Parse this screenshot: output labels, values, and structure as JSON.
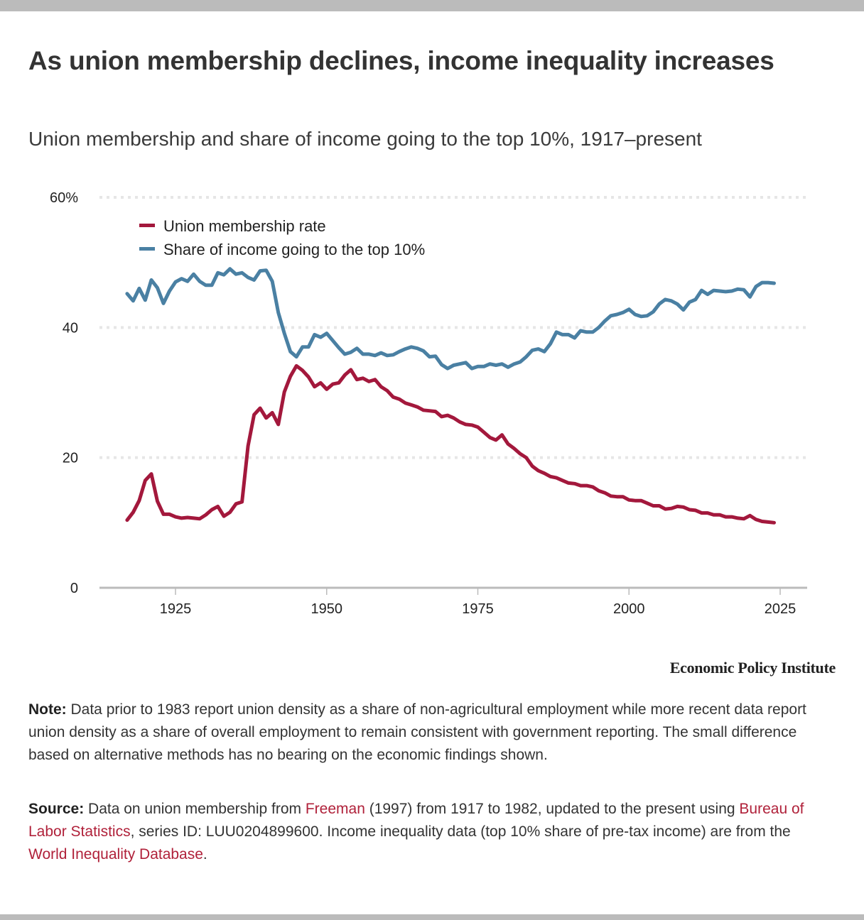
{
  "header": {
    "title": "As union membership declines, income inequality increases",
    "subtitle": "Union membership and share of income going to the top 10%, 1917–present"
  },
  "colors": {
    "union": "#a3183c",
    "income": "#4a80a3",
    "grid": "#e6e6e6",
    "axis": "#bbbbbb",
    "link": "#b0213a"
  },
  "chart_data": {
    "type": "line",
    "title": "As union membership declines, income inequality increases",
    "subtitle": "Union membership and share of income going to the top 10%, 1917–present",
    "xlabel": "",
    "ylabel": "",
    "xlim": [
      1913,
      2029
    ],
    "ylim": [
      0,
      60
    ],
    "x_ticks": [
      1925,
      1950,
      1975,
      2000,
      2025
    ],
    "x_tick_labels": [
      "1925",
      "1950",
      "1975",
      "2000",
      "2025"
    ],
    "y_ticks": [
      0,
      20,
      40,
      60
    ],
    "y_tick_labels": [
      "0",
      "20",
      "40",
      "60%"
    ],
    "grid": "horizontal dotted",
    "legend_position": "top-left",
    "x_start": 1917,
    "series": [
      {
        "name": "Union membership rate",
        "key": "union",
        "values": [
          10.4,
          11.6,
          13.4,
          16.5,
          17.5,
          13.3,
          11.3,
          11.3,
          10.9,
          10.7,
          10.8,
          10.7,
          10.6,
          11.2,
          12.0,
          12.5,
          11.0,
          11.6,
          12.9,
          13.2,
          21.8,
          26.6,
          27.6,
          26.1,
          26.9,
          25.1,
          30.1,
          32.5,
          34.1,
          33.4,
          32.4,
          30.9,
          31.5,
          30.5,
          31.3,
          31.5,
          32.7,
          33.5,
          32.0,
          32.2,
          31.7,
          32.0,
          30.9,
          30.3,
          29.3,
          29.0,
          28.4,
          28.1,
          27.8,
          27.3,
          27.2,
          27.1,
          26.3,
          26.5,
          26.1,
          25.5,
          25.1,
          25.0,
          24.7,
          23.9,
          23.1,
          22.7,
          23.5,
          22.1,
          21.4,
          20.6,
          20.0,
          18.7,
          18.0,
          17.6,
          17.1,
          16.9,
          16.5,
          16.1,
          16.0,
          15.7,
          15.7,
          15.5,
          14.9,
          14.6,
          14.1,
          14.0,
          14.0,
          13.5,
          13.4,
          13.4,
          13.0,
          12.6,
          12.6,
          12.1,
          12.2,
          12.5,
          12.4,
          12.0,
          11.9,
          11.5,
          11.5,
          11.2,
          11.2,
          10.9,
          10.9,
          10.7,
          10.6,
          11.1,
          10.5,
          10.2,
          10.1,
          10.0
        ]
      },
      {
        "name": "Share of income going to the top 10%",
        "key": "income",
        "values": [
          45.2,
          44.1,
          46.0,
          44.2,
          47.3,
          46.1,
          43.7,
          45.6,
          47.0,
          47.5,
          47.1,
          48.2,
          47.1,
          46.5,
          46.5,
          48.4,
          48.1,
          49.0,
          48.2,
          48.4,
          47.7,
          47.3,
          48.7,
          48.8,
          47.1,
          42.3,
          39.1,
          36.3,
          35.5,
          37.0,
          37.0,
          38.9,
          38.5,
          39.1,
          38.0,
          36.9,
          35.9,
          36.2,
          36.8,
          35.9,
          35.9,
          35.7,
          36.1,
          35.7,
          35.8,
          36.3,
          36.7,
          37.0,
          36.8,
          36.4,
          35.5,
          35.6,
          34.3,
          33.7,
          34.2,
          34.4,
          34.6,
          33.7,
          34.0,
          34.0,
          34.4,
          34.2,
          34.4,
          33.9,
          34.4,
          34.7,
          35.5,
          36.5,
          36.7,
          36.3,
          37.5,
          39.3,
          38.9,
          38.9,
          38.4,
          39.5,
          39.3,
          39.3,
          40.0,
          41.0,
          41.8,
          42.0,
          42.3,
          42.8,
          42.0,
          41.7,
          41.8,
          42.4,
          43.6,
          44.3,
          44.1,
          43.6,
          42.7,
          43.9,
          44.3,
          45.7,
          45.1,
          45.7,
          45.6,
          45.5,
          45.6,
          45.9,
          45.8,
          44.7,
          46.3,
          46.9,
          46.9,
          46.8
        ]
      }
    ]
  },
  "legend": {
    "items": [
      {
        "label": "Union membership rate"
      },
      {
        "label": "Share of income going to the top 10%"
      }
    ]
  },
  "footer": {
    "brand": "Economic Policy Institute",
    "note_label": "Note:",
    "note_text": " Data prior to 1983 report union density as a share of non-agricultural employment while more recent data report union density as a share of overall employment to remain consistent with government reporting. The small difference based on alternative methods has no bearing on the economic findings shown.",
    "source_label": "Source:",
    "source_parts": {
      "t1": " Data on union membership from ",
      "link1": "Freeman",
      "t2": " (1997) from 1917 to 1982, updated to the present using ",
      "link2": "Bureau of Labor Statistics",
      "t3": ", series ID: LUU0204899600. Income inequality data (top 10% share of pre-tax income) are from the ",
      "link3": "World Inequality Database",
      "t4": "."
    }
  }
}
